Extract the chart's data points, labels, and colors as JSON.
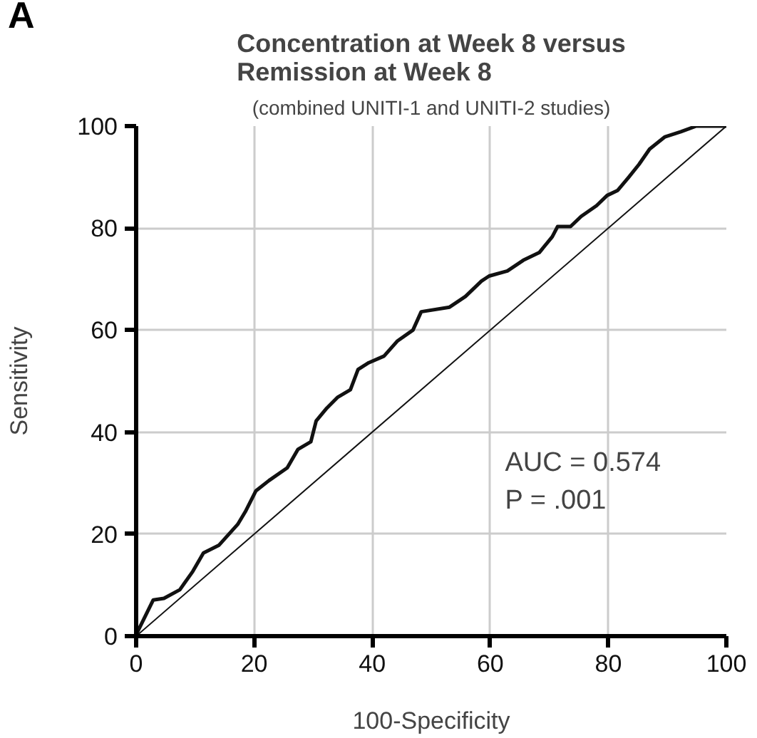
{
  "chart_data": {
    "type": "line",
    "title": "Concentration at Week 8 versus Remission at Week 8",
    "subtitle": "(combined UNITI-1 and UNITI-2 studies)",
    "xlabel": "100-Specificity",
    "ylabel": "Sensitivity",
    "series": [
      {
        "color": "#111111",
        "x": [
          0,
          0.3,
          2.9,
          4.7,
          7.4,
          9.6,
          11.4,
          14,
          17.2,
          18.5,
          20.3,
          22.5,
          25.6,
          27.4,
          29.6,
          30.5,
          32.3,
          34.1,
          36.3,
          37.6,
          39.4,
          42,
          44.3,
          46.9,
          48.3,
          53.1,
          55.8,
          58.5,
          59.8,
          62.9,
          65.6,
          68.3,
          70.5,
          71.4,
          73.6,
          75.4,
          78,
          79.8,
          81.6,
          83.4,
          85.2,
          87,
          89.6,
          92.3,
          94.9,
          99.8,
          100
        ],
        "values": [
          0,
          1,
          7.1,
          7.4,
          9.1,
          12.7,
          16.3,
          17.8,
          21.9,
          24.4,
          28.5,
          30.5,
          33,
          36.6,
          38.1,
          42.2,
          44.7,
          46.8,
          48.3,
          52.3,
          53.6,
          54.9,
          57.9,
          60,
          63.6,
          64.5,
          66.6,
          69.6,
          70.6,
          71.6,
          73.7,
          75.2,
          78.3,
          80.3,
          80.3,
          82.3,
          84.4,
          86.4,
          87.4,
          89.9,
          92.5,
          95.5,
          97.9,
          98.9,
          100,
          100,
          100
        ]
      },
      {
        "color": "#111111",
        "x": [
          0,
          100
        ],
        "values": [
          0,
          100
        ],
        "line_style": "solid"
      }
    ],
    "xlim": [
      0,
      100
    ],
    "ylim": [
      0,
      100
    ],
    "xticks": [
      0,
      20,
      40,
      60,
      80,
      100
    ],
    "yticks": [
      0,
      20,
      40,
      60,
      80,
      100
    ],
    "grid": true,
    "annotations": [
      "A",
      "AUC = 0.574",
      "P = .001"
    ]
  }
}
